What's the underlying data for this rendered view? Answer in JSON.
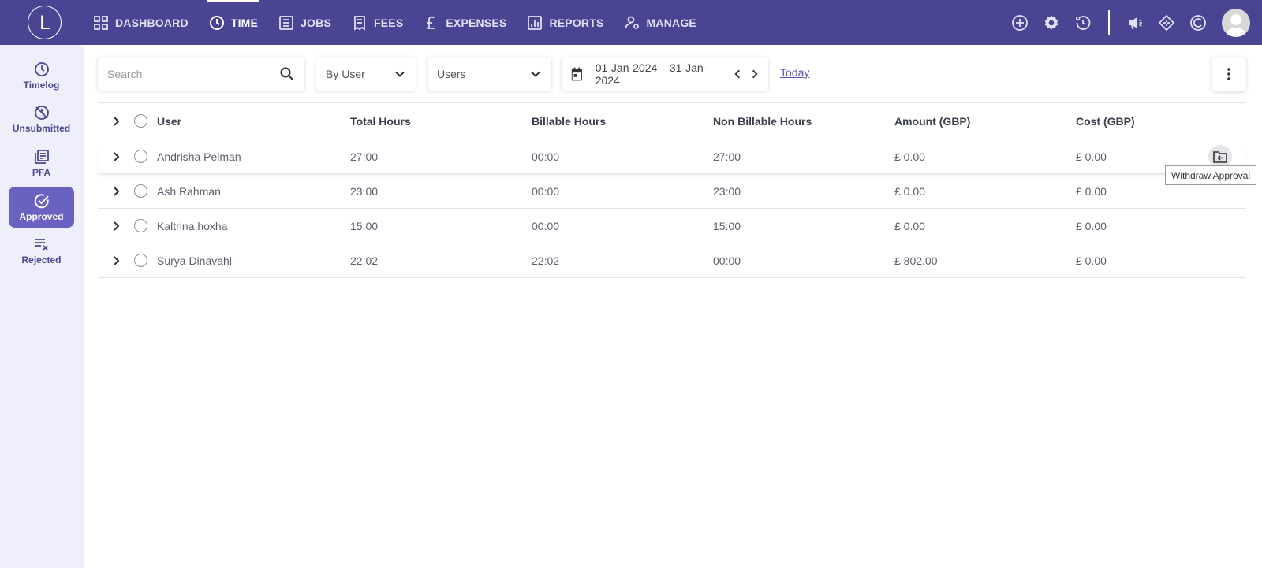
{
  "app": {
    "logo_letter": "L"
  },
  "nav": {
    "items": [
      {
        "label": "DASHBOARD",
        "icon": "grid-icon",
        "active": false
      },
      {
        "label": "TIME",
        "icon": "clock-icon",
        "active": true
      },
      {
        "label": "JOBS",
        "icon": "list-icon",
        "active": false
      },
      {
        "label": "FEES",
        "icon": "receipt-icon",
        "active": false
      },
      {
        "label": "EXPENSES",
        "icon": "pound-icon",
        "active": false
      },
      {
        "label": "REPORTS",
        "icon": "bar-chart-icon",
        "active": false
      },
      {
        "label": "MANAGE",
        "icon": "user-gear-icon",
        "active": false
      }
    ],
    "right_icons": [
      "plus-circle-icon",
      "gear-icon",
      "history-icon",
      "megaphone-icon",
      "diamond-icon",
      "c-logo-icon",
      "avatar"
    ]
  },
  "sidebar": {
    "items": [
      {
        "label": "Timelog",
        "icon": "clock-icon",
        "active": false
      },
      {
        "label": "Unsubmitted",
        "icon": "unsubmitted-icon",
        "active": false
      },
      {
        "label": "PFA",
        "icon": "pfa-icon",
        "active": false
      },
      {
        "label": "Approved",
        "icon": "check-circle-icon",
        "active": true
      },
      {
        "label": "Rejected",
        "icon": "rejected-icon",
        "active": false
      }
    ]
  },
  "toolbar": {
    "search_placeholder": "Search",
    "group_by": "By User",
    "filter": "Users",
    "date_range": "01-Jan-2024 – 31-Jan-2024",
    "today_label": "Today"
  },
  "table": {
    "columns": [
      "User",
      "Total Hours",
      "Billable Hours",
      "Non Billable Hours",
      "Amount (GBP)",
      "Cost (GBP)"
    ],
    "rows": [
      {
        "user": "Andrisha Pelman",
        "total": "27:00",
        "billable": "00:00",
        "non_billable": "27:00",
        "amount": "£ 0.00",
        "cost": "£ 0.00"
      },
      {
        "user": "Ash Rahman",
        "total": "23:00",
        "billable": "00:00",
        "non_billable": "23:00",
        "amount": "£ 0.00",
        "cost": "£ 0.00"
      },
      {
        "user": "Kaltrina hoxha",
        "total": "15:00",
        "billable": "00:00",
        "non_billable": "15:00",
        "amount": "£ 0.00",
        "cost": "£ 0.00"
      },
      {
        "user": "Surya Dinavahi",
        "total": "22:02",
        "billable": "22:02",
        "non_billable": "00:00",
        "amount": "£ 802.00",
        "cost": "£ 0.00"
      }
    ],
    "row_action_tooltip": "Withdraw Approval"
  },
  "colors": {
    "brand": "#4a4593",
    "sidebar_bg": "#efeefb",
    "active_item": "#6a62c0"
  }
}
